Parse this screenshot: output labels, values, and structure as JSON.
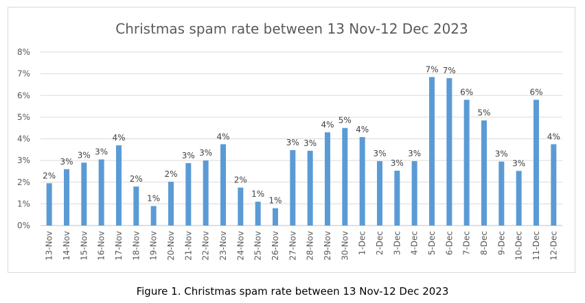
{
  "chart_data": {
    "type": "bar",
    "title": "Christmas spam rate between 13 Nov-12 Dec 2023",
    "xlabel": "",
    "ylabel": "",
    "ylim": [
      0,
      8
    ],
    "yticks": [
      "0%",
      "1%",
      "2%",
      "3%",
      "4%",
      "5%",
      "6%",
      "7%",
      "8%"
    ],
    "grid": true,
    "legend": "none",
    "bar_color": "#5b9bd5",
    "categories": [
      "13-Nov",
      "14-Nov",
      "15-Nov",
      "16-Nov",
      "17-Nov",
      "18-Nov",
      "19-Nov",
      "20-Nov",
      "21-Nov",
      "22-Nov",
      "23-Nov",
      "24-Nov",
      "25-Nov",
      "26-Nov",
      "27-Nov",
      "28-Nov",
      "29-Nov",
      "30-Nov",
      "1-Dec",
      "2-Dec",
      "3-Dec",
      "4-Dec",
      "5-Dec",
      "6-Dec",
      "7-Dec",
      "8-Dec",
      "9-Dec",
      "10-Dec",
      "11-Dec",
      "12-Dec"
    ],
    "values": [
      1.95,
      2.6,
      2.9,
      3.05,
      3.7,
      1.8,
      0.9,
      2.02,
      2.88,
      3.0,
      3.75,
      1.75,
      1.1,
      0.8,
      3.48,
      3.45,
      4.3,
      4.5,
      4.08,
      2.97,
      2.53,
      2.97,
      6.85,
      6.8,
      5.8,
      4.85,
      2.95,
      2.52,
      5.8,
      3.75
    ],
    "data_labels": [
      "2%",
      "3%",
      "3%",
      "3%",
      "4%",
      "2%",
      "1%",
      "2%",
      "3%",
      "3%",
      "4%",
      "2%",
      "1%",
      "1%",
      "3%",
      "3%",
      "4%",
      "5%",
      "4%",
      "3%",
      "3%",
      "3%",
      "7%",
      "7%",
      "6%",
      "5%",
      "3%",
      "3%",
      "6%",
      "4%"
    ]
  },
  "caption": "Figure 1. Christmas spam rate between 13 Nov-12 Dec 2023"
}
